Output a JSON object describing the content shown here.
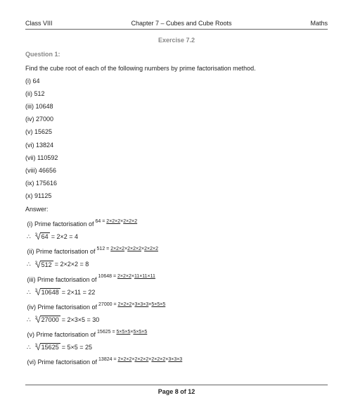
{
  "header": {
    "left": "Class VIII",
    "center": "Chapter 7 – Cubes and Cube Roots",
    "right": "Maths"
  },
  "exercise": "Exercise 7.2",
  "question": "Question 1:",
  "prompt": "Find the cube root of each of the following numbers by prime factorisation method.",
  "items": [
    "(i) 64",
    "(ii) 512",
    "(iii) 10648",
    "(iv) 27000",
    "(v) 15625",
    "(vi) 13824",
    "(vii) 110592",
    "(viii) 46656",
    "(ix) 175616",
    "(x) 91125"
  ],
  "answer_label": "Answer:",
  "solutions": [
    {
      "lead": "(i) Prime factorisation of ",
      "num": "64",
      "groups": [
        "2×2×2",
        "2×2×2"
      ],
      "radicand": "64",
      "root_expr": "2×2 = 4"
    },
    {
      "lead": "(ii) Prime factorisation of ",
      "num": "512",
      "groups": [
        "2×2×2",
        "2×2×2",
        "2×2×2"
      ],
      "radicand": "512",
      "root_expr": "2×2×2 = 8"
    },
    {
      "lead": "(iii) Prime factorisation of ",
      "num": "10648",
      "groups": [
        "2×2×2",
        "11×11×11"
      ],
      "radicand": "10648",
      "root_expr": "2×11 = 22"
    },
    {
      "lead": "(iv) Prime factorisation of ",
      "num": "27000",
      "groups": [
        "2×2×2",
        "3×3×3",
        "5×5×5"
      ],
      "radicand": "27000",
      "root_expr": "2×3×5 = 30"
    },
    {
      "lead": "(v) Prime factorisation of ",
      "num": "15625",
      "groups": [
        "5×5×5",
        "5×5×5"
      ],
      "radicand": "15625",
      "root_expr": "5×5 = 25"
    },
    {
      "lead": "(vi) Prime factorisation of ",
      "num": "13824",
      "groups": [
        "2×2×2",
        "2×2×2",
        "2×2×2",
        "3×3×3"
      ],
      "radicand": "",
      "root_expr": ""
    }
  ],
  "footer": "Page 8 of 12"
}
